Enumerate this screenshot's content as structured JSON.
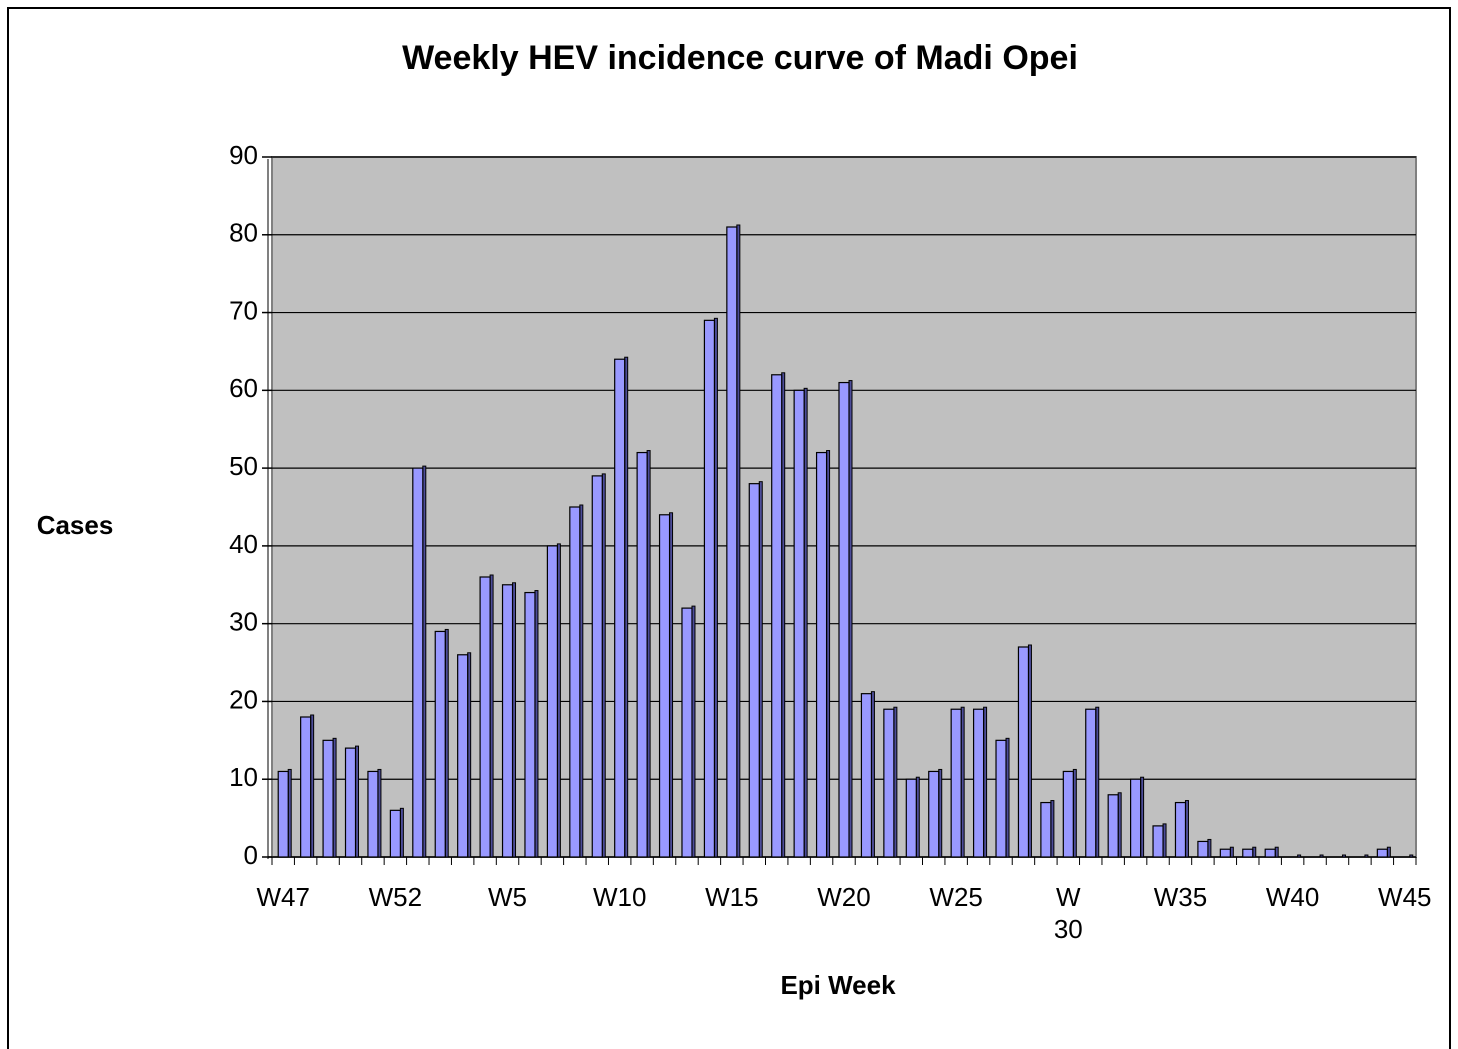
{
  "chart_data": {
    "type": "bar",
    "title": "Weekly HEV incidence curve of Madi Opei",
    "xlabel": "Epi Week",
    "ylabel": "Cases",
    "categories": [
      "W47",
      null,
      null,
      null,
      null,
      "W52",
      null,
      null,
      null,
      null,
      "W5",
      null,
      null,
      null,
      null,
      "W10",
      null,
      null,
      null,
      null,
      "W15",
      null,
      null,
      null,
      null,
      "W20",
      null,
      null,
      null,
      null,
      "W25",
      null,
      null,
      null,
      null,
      "W 30",
      null,
      null,
      null,
      null,
      "W35",
      null,
      null,
      null,
      null,
      "W40",
      null,
      null,
      null,
      null,
      "W45"
    ],
    "values": [
      11,
      18,
      15,
      14,
      11,
      6,
      50,
      29,
      26,
      36,
      35,
      34,
      40,
      45,
      49,
      64,
      52,
      44,
      32,
      69,
      81,
      48,
      62,
      60,
      52,
      61,
      21,
      19,
      10,
      11,
      19,
      19,
      15,
      27,
      7,
      11,
      19,
      8,
      10,
      4,
      7,
      2,
      1,
      1,
      1,
      0,
      0,
      0,
      0,
      1,
      0
    ],
    "color": "#9999ff",
    "plot_background": "#c0c0c0",
    "ylim": [
      0,
      90
    ],
    "yticks": [
      0,
      10,
      20,
      30,
      40,
      50,
      60,
      70,
      80,
      90
    ],
    "grid": true
  }
}
